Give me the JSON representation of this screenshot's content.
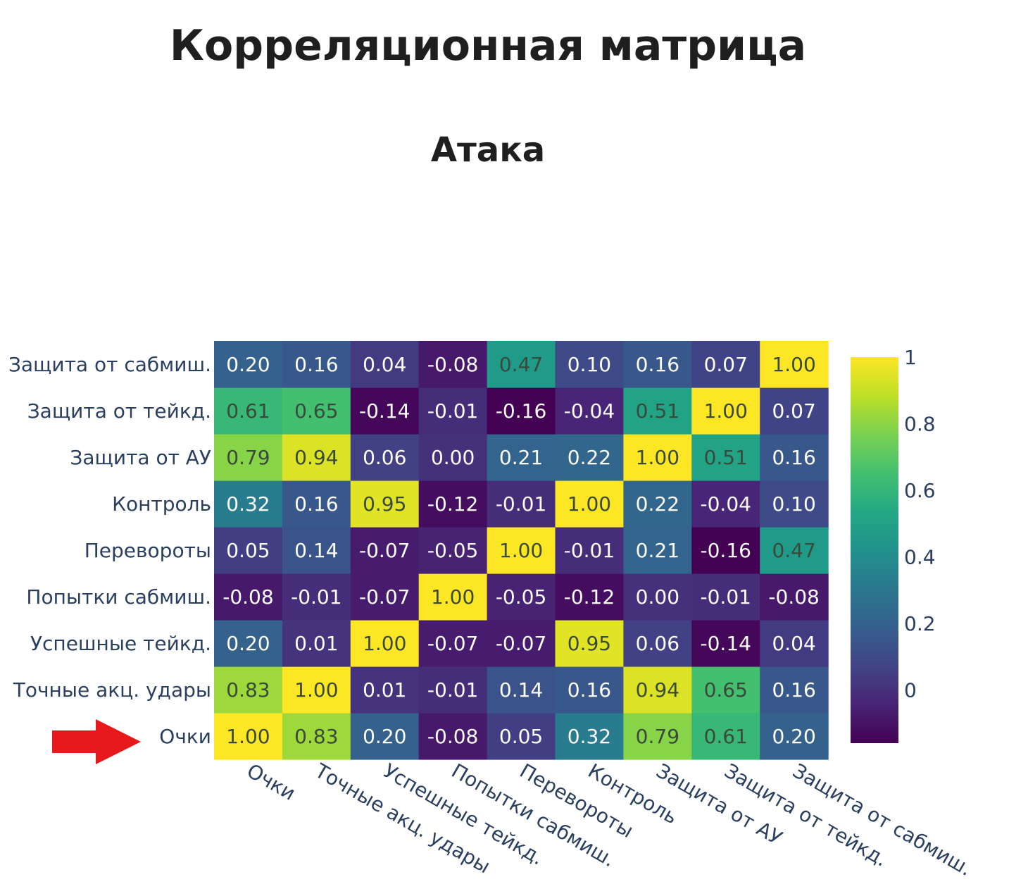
{
  "page": {
    "title": "Корреляционная матрица"
  },
  "chart_data": {
    "type": "heatmap",
    "title": "Атака",
    "colorscale": "viridis",
    "zmin": -0.16,
    "zmax": 1.0,
    "x": [
      "Очки",
      "Точные акц. удары",
      "Успешные тейкд.",
      "Попытки сабмиш.",
      "Перевороты",
      "Контроль",
      "Защита от АУ",
      "Защита от тейкд.",
      "Защита от сабмиш."
    ],
    "y": [
      "Очки",
      "Точные акц. удары",
      "Успешные тейкд.",
      "Попытки сабмиш.",
      "Перевороты",
      "Контроль",
      "Защита от АУ",
      "Защита от тейкд.",
      "Защита от сабмиш."
    ],
    "z": [
      [
        1.0,
        0.83,
        0.2,
        -0.08,
        0.05,
        0.32,
        0.79,
        0.61,
        0.2
      ],
      [
        0.83,
        1.0,
        0.01,
        -0.01,
        0.14,
        0.16,
        0.94,
        0.65,
        0.16
      ],
      [
        0.2,
        0.01,
        1.0,
        -0.07,
        -0.07,
        0.95,
        0.06,
        -0.14,
        0.04
      ],
      [
        -0.08,
        -0.01,
        -0.07,
        1.0,
        -0.05,
        -0.12,
        0.0,
        -0.01,
        -0.08
      ],
      [
        0.05,
        0.14,
        -0.07,
        -0.05,
        1.0,
        -0.01,
        0.21,
        -0.16,
        0.47
      ],
      [
        0.32,
        0.16,
        0.95,
        -0.12,
        -0.01,
        1.0,
        0.22,
        -0.04,
        0.1
      ],
      [
        0.79,
        0.94,
        0.06,
        0.0,
        0.21,
        0.22,
        1.0,
        0.51,
        0.16
      ],
      [
        0.61,
        0.65,
        -0.14,
        -0.01,
        -0.16,
        -0.04,
        0.51,
        1.0,
        0.07
      ],
      [
        0.2,
        0.16,
        0.04,
        -0.08,
        0.47,
        0.1,
        0.16,
        0.07,
        1.0
      ]
    ],
    "y_tick_labels": [
      "Очки",
      "Точные акц. удары",
      "Успешные тейкд.",
      "Попытки сабмиш.",
      "Перевороты",
      "Контроль",
      "Защита от АУ",
      "Защита от тейкд.",
      "Защита от сабмиш."
    ],
    "colorbar_ticks": [
      {
        "value": 0,
        "label": "0"
      },
      {
        "value": 0.2,
        "label": "0.2"
      },
      {
        "value": 0.4,
        "label": "0.4"
      },
      {
        "value": 0.6,
        "label": "0.6"
      },
      {
        "value": 0.8,
        "label": "0.8"
      },
      {
        "value": 1,
        "label": "1"
      }
    ],
    "annotation": {
      "type": "arrow",
      "color": "#e8191c",
      "target_row": "Очки"
    }
  }
}
